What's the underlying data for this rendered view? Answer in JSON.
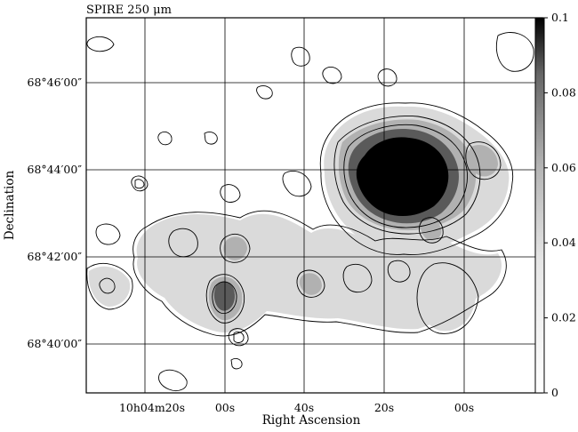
{
  "title": "SPIRE 250 μm",
  "xlabel": "Right Ascension",
  "ylabel": "Declination",
  "colorbar": {
    "ticks": [
      {
        "label": "0.1",
        "value": 0.1
      },
      {
        "label": "0.08",
        "value": 0.08
      },
      {
        "label": "0.06",
        "value": 0.06
      },
      {
        "label": "0.04",
        "value": 0.04
      },
      {
        "label": "0.02",
        "value": 0.02
      },
      {
        "label": "0",
        "value": 0
      }
    ],
    "range": [
      0,
      0.1
    ]
  },
  "dec_ticks": [
    "68°46′00″",
    "68°44′00″",
    "68°42′00″",
    "68°40′00″"
  ],
  "ra_ticks": [
    {
      "label": "10h04m20s"
    },
    {
      "label": "00s"
    },
    {
      "label": "40s"
    },
    {
      "label": "20s"
    },
    {
      "label": "00s"
    }
  ],
  "colors": {
    "background": "#ffffff",
    "ink": "#000000",
    "peak": "#000000"
  }
}
